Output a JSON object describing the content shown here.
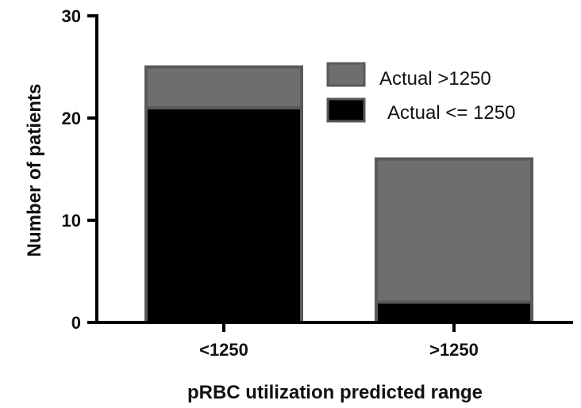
{
  "chart_data": {
    "type": "bar",
    "stacked": true,
    "categories": [
      "<1250",
      ">1250"
    ],
    "series": [
      {
        "name": "Actual <= 1250",
        "values": [
          21,
          2
        ],
        "color": "#000000"
      },
      {
        "name": "Actual >1250",
        "values": [
          4,
          14
        ],
        "color": "#6e6e6e"
      }
    ],
    "title": "",
    "xlabel": "pRBC utilization predicted range",
    "ylabel": "Number of patients",
    "ylim": [
      0,
      30
    ],
    "yticks": [
      0,
      10,
      20,
      30
    ],
    "grid": false,
    "legend": {
      "position": "top-right",
      "entries": [
        {
          "label": "Actual >1250",
          "color": "#6e6e6e"
        },
        {
          "label": "Actual <= 1250",
          "color": "#000000"
        }
      ]
    }
  }
}
